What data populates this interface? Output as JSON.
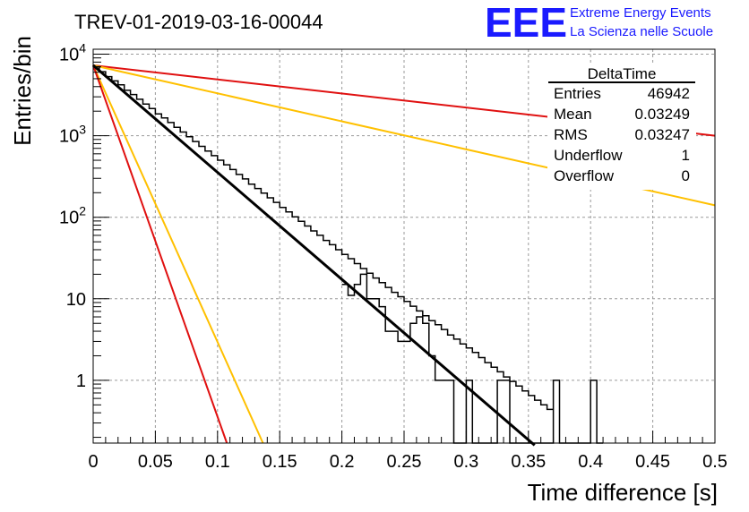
{
  "chart_data": {
    "type": "histogram",
    "title": "TREV-01-2019-03-16-00044",
    "xlabel": "Time difference [s]",
    "ylabel": "Entries/bin",
    "xlim": [
      0,
      0.5
    ],
    "ylim": [
      0.17,
      11500
    ],
    "y_scale": "log",
    "grid": true,
    "x_ticks": [
      0,
      0.05,
      0.1,
      0.15,
      0.2,
      0.25,
      0.3,
      0.35,
      0.4,
      0.45,
      0.5
    ],
    "x_tick_labels": [
      "0",
      "0.05",
      "0.1",
      "0.15",
      "0.2",
      "0.25",
      "0.3",
      "0.35",
      "0.4",
      "0.45",
      "0.5"
    ],
    "y_ticks": [
      1,
      10,
      100,
      1000,
      10000
    ],
    "y_tick_labels": [
      {
        "base": "1",
        "exp": ""
      },
      {
        "base": "10",
        "exp": ""
      },
      {
        "base": "10",
        "exp": "2"
      },
      {
        "base": "10",
        "exp": "3"
      },
      {
        "base": "10",
        "exp": "4"
      }
    ],
    "logo": {
      "text": "EEE",
      "line1": "Extreme Energy Events",
      "line2": "La Scienza nelle Scuole",
      "color": "#1a1aff"
    },
    "stats_box": {
      "title": "DeltaTime",
      "rows": [
        {
          "label": "Entries",
          "value": "46942"
        },
        {
          "label": "Mean",
          "value": "0.03249"
        },
        {
          "label": "RMS",
          "value": "0.03247"
        },
        {
          "label": "Underflow",
          "value": "1"
        },
        {
          "label": "Overflow",
          "value": "0"
        }
      ]
    },
    "histogram": {
      "bin_width": 0.005,
      "x_start": 0,
      "values": [
        7000,
        6100,
        5300,
        4700,
        4200,
        3600,
        3200,
        2800,
        2450,
        2150,
        1850,
        1650,
        1450,
        1270,
        1110,
        970,
        850,
        740,
        650,
        570,
        500,
        440,
        385,
        335,
        295,
        255,
        225,
        198,
        173,
        152,
        132,
        116,
        101,
        89,
        78,
        68,
        60,
        52,
        46,
        40,
        35,
        31,
        27,
        23.5,
        20.6,
        18,
        15.8,
        13.8,
        12,
        10.6,
        9.3,
        8.1,
        7.1,
        6.2,
        5.4,
        4.8,
        4.2,
        3.6,
        3.2,
        2.8,
        2.5,
        2.2,
        1.9,
        1.65,
        1.45,
        1.27,
        1.1,
        0.97,
        0.85,
        0.74,
        0.65,
        0.57,
        0.5,
        0.44
      ]
    },
    "histogram_measured": {
      "bin_width": 0.005,
      "x_start": 0.2,
      "values": [
        15,
        11,
        15,
        20,
        10,
        10,
        8,
        4,
        4,
        3,
        3,
        5,
        6,
        5,
        2,
        1,
        1,
        1,
        0,
        0,
        1,
        0,
        0,
        0,
        0,
        1,
        1,
        0,
        0,
        0,
        0,
        0,
        0,
        0,
        1,
        0,
        0,
        0,
        0,
        0,
        1,
        0
      ]
    },
    "series": [
      {
        "name": "",
        "type": "fit",
        "color": "#000000",
        "x": [
          0,
          0.355
        ],
        "y": [
          7300,
          0.16
        ]
      },
      {
        "name": "",
        "type": "line",
        "color": "#e01010",
        "x": [
          0,
          0.5
        ],
        "y": [
          7300,
          1000
        ]
      },
      {
        "name": "",
        "type": "line",
        "color": "#ffc000",
        "x": [
          0,
          0.5
        ],
        "y": [
          7300,
          140
        ]
      },
      {
        "name": "",
        "type": "line",
        "color": "#ffc000",
        "x": [
          0,
          0.1365
        ],
        "y": [
          7300,
          0.17
        ]
      },
      {
        "name": "",
        "type": "line",
        "color": "#e01010",
        "x": [
          0,
          0.1075
        ],
        "y": [
          7300,
          0.17
        ]
      }
    ]
  }
}
